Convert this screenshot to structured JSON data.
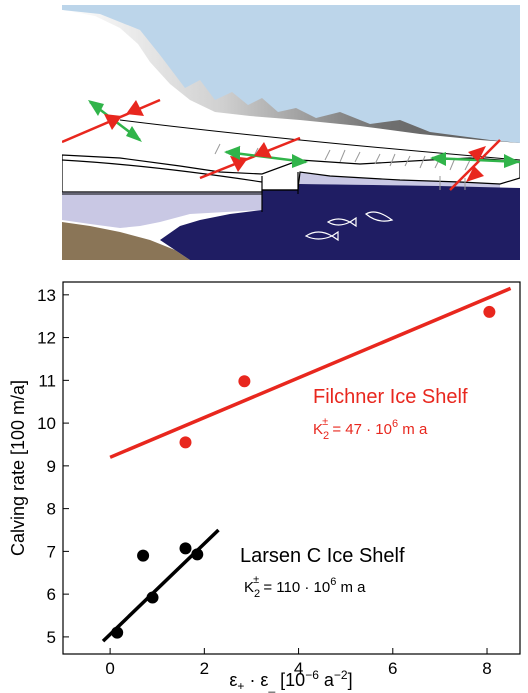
{
  "colors": {
    "sky": "#bcd5ea",
    "mountain": "#8c8c8c",
    "ice": "#ffffff",
    "water": "#1f1d63",
    "submerged_ice": "#c9c8e4",
    "ground": "#8a7557",
    "arrow_red": "#e8271e",
    "arrow_green": "#31b44a",
    "filchner": "#e8271e",
    "larsen": "#000000"
  },
  "illustration": {
    "arrows": [
      "arrow-red",
      "arrow-green"
    ],
    "icons": [
      "fish-icon",
      "fish-icon"
    ]
  },
  "chart_data": {
    "type": "scatter",
    "xlabel": "ε₊ · ε₋ [10⁻⁶ a⁻²]",
    "xlabel_parts": {
      "base": "ε",
      "sub1": "+",
      "dot": " · ε",
      "sub2": "_",
      "unit_a": " [10",
      "exp1": "−6",
      "unit_b": " a",
      "exp2": "−2",
      "unit_c": "]"
    },
    "ylabel": "Calving rate [100 m/a]",
    "xlim": [
      -1,
      8.7
    ],
    "ylim": [
      4.6,
      13.3
    ],
    "xticks": [
      0,
      2,
      4,
      6,
      8
    ],
    "yticks": [
      5,
      6,
      7,
      8,
      9,
      10,
      11,
      12,
      13
    ],
    "grid": false,
    "series": [
      {
        "name": "Filchner Ice Shelf",
        "constant": "K₂± = 47 · 10⁶ m a",
        "constant_parts": {
          "k": "K",
          "sub": "2",
          "sup": "±",
          "rest": " = 47 · 10",
          "exp": "6",
          "unit": " m a"
        },
        "color": "#e8271e",
        "points": [
          {
            "x": 1.6,
            "y": 9.55
          },
          {
            "x": 2.85,
            "y": 10.98
          },
          {
            "x": 8.05,
            "y": 12.6
          }
        ],
        "fit": {
          "x0": 0,
          "y0": 9.2,
          "x1": 8.5,
          "y1": 13.15
        }
      },
      {
        "name": "Larsen C Ice Shelf",
        "constant": "K₂± = 110 · 10⁶ m a",
        "constant_parts": {
          "k": "K",
          "sub": "2",
          "sup": "±",
          "rest": " = 110 · 10",
          "exp": "6",
          "unit": " m a"
        },
        "color": "#000000",
        "points": [
          {
            "x": 0.15,
            "y": 5.1
          },
          {
            "x": 0.7,
            "y": 6.9
          },
          {
            "x": 0.9,
            "y": 5.92
          },
          {
            "x": 1.6,
            "y": 7.07
          },
          {
            "x": 1.85,
            "y": 6.93
          }
        ],
        "fit": {
          "x0": -0.15,
          "y0": 4.9,
          "x1": 2.3,
          "y1": 7.5
        }
      }
    ]
  }
}
